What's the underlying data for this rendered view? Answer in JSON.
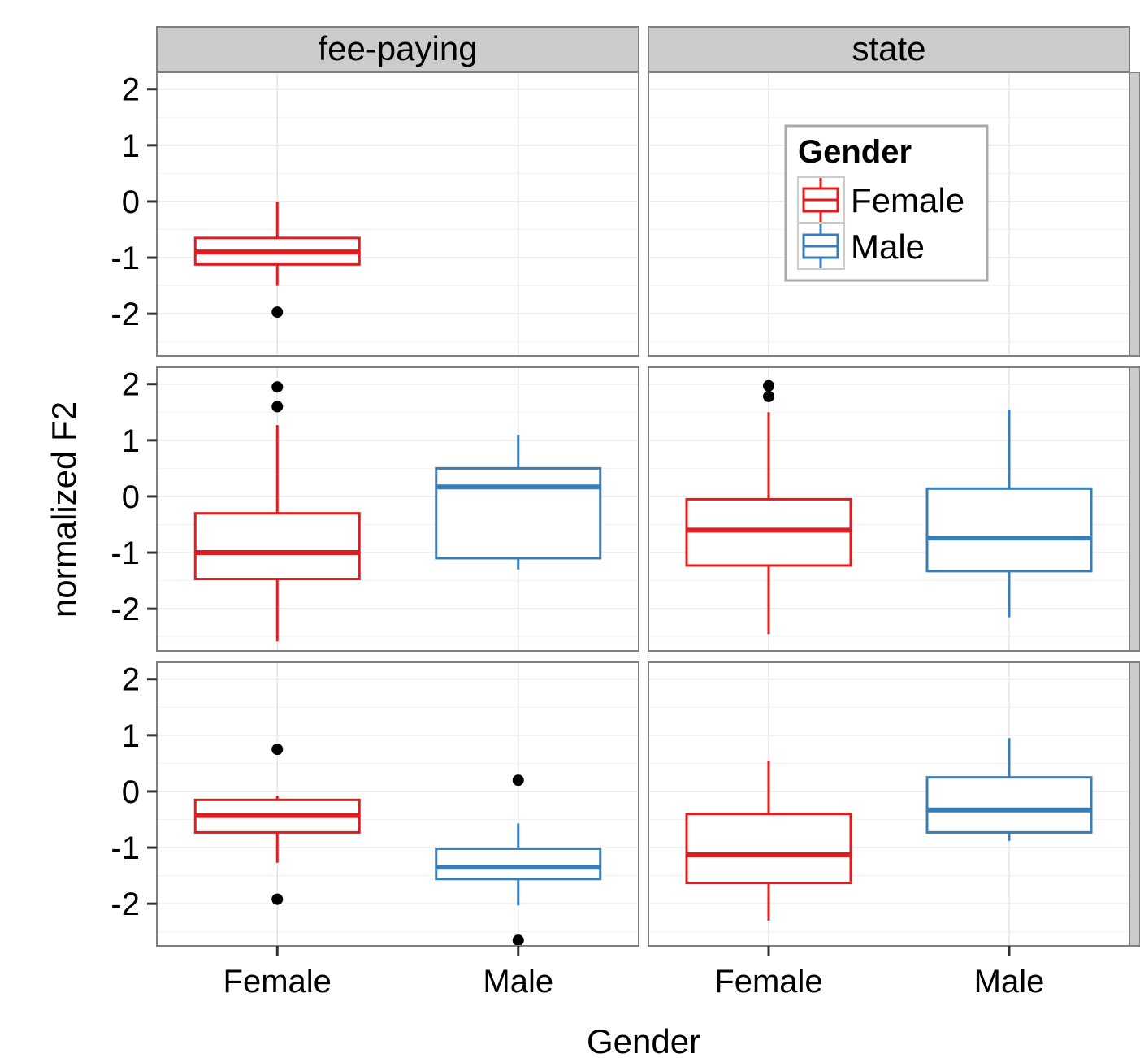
{
  "chart_data": {
    "type": "box",
    "xlabel": "Gender",
    "ylabel": "normalized F2",
    "categories": [
      "Female",
      "Male"
    ],
    "ylim": [
      -2.75,
      2.3
    ],
    "yticks": [
      -2,
      -1,
      0,
      1,
      2
    ],
    "ytick_labels": [
      "-2",
      "-1",
      "0",
      "1",
      "2"
    ],
    "grid": true,
    "col_facets": [
      "fee-paying",
      "state"
    ],
    "row_facets": [
      "",
      "",
      ""
    ],
    "legend": {
      "title": "Gender",
      "placement": "inside-top-right",
      "entries": [
        {
          "label": "Female",
          "color": "#e41a1c"
        },
        {
          "label": "Male",
          "color": "#377eb8"
        }
      ]
    },
    "colors": {
      "Female": "#e41a1c",
      "Male": "#377eb8",
      "outlier": "#000000",
      "strip": "#cccccc",
      "panel_border": "#7f7f7f"
    },
    "panels": [
      {
        "row": 0,
        "col": 0,
        "boxes": [
          {
            "group": "Female",
            "whisker_low": -1.5,
            "q1": -1.12,
            "median": -0.9,
            "q3": -0.65,
            "whisker_high": 0.0,
            "outliers": [
              -1.97
            ]
          }
        ]
      },
      {
        "row": 0,
        "col": 1,
        "boxes": []
      },
      {
        "row": 1,
        "col": 0,
        "boxes": [
          {
            "group": "Female",
            "whisker_low": -2.58,
            "q1": -1.47,
            "median": -1.0,
            "q3": -0.3,
            "whisker_high": 1.27,
            "outliers": [
              1.95,
              1.6
            ]
          },
          {
            "group": "Male",
            "whisker_low": -1.3,
            "q1": -1.1,
            "median": 0.17,
            "q3": 0.5,
            "whisker_high": 1.1,
            "outliers": []
          }
        ]
      },
      {
        "row": 1,
        "col": 1,
        "boxes": [
          {
            "group": "Female",
            "whisker_low": -2.45,
            "q1": -1.23,
            "median": -0.6,
            "q3": -0.05,
            "whisker_high": 1.5,
            "outliers": [
              1.97,
              1.78
            ]
          },
          {
            "group": "Male",
            "whisker_low": -2.15,
            "q1": -1.33,
            "median": -0.74,
            "q3": 0.14,
            "whisker_high": 1.55,
            "outliers": []
          }
        ]
      },
      {
        "row": 2,
        "col": 0,
        "boxes": [
          {
            "group": "Female",
            "whisker_low": -1.27,
            "q1": -0.73,
            "median": -0.43,
            "q3": -0.15,
            "whisker_high": -0.08,
            "outliers": [
              0.75,
              -1.92
            ]
          },
          {
            "group": "Male",
            "whisker_low": -2.03,
            "q1": -1.56,
            "median": -1.35,
            "q3": -1.02,
            "whisker_high": -0.57,
            "outliers": [
              0.2,
              -2.65
            ]
          }
        ]
      },
      {
        "row": 2,
        "col": 1,
        "boxes": [
          {
            "group": "Female",
            "whisker_low": -2.3,
            "q1": -1.63,
            "median": -1.13,
            "q3": -0.4,
            "whisker_high": 0.55,
            "outliers": []
          },
          {
            "group": "Male",
            "whisker_low": -0.88,
            "q1": -0.73,
            "median": -0.33,
            "q3": 0.25,
            "whisker_high": 0.95,
            "outliers": []
          }
        ]
      }
    ]
  }
}
